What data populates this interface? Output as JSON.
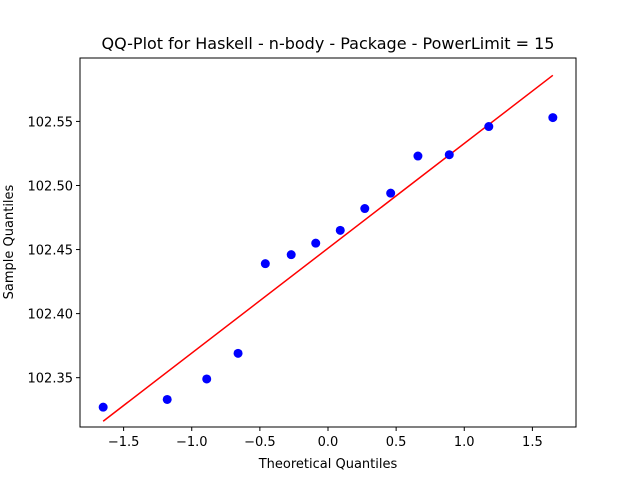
{
  "chart_data": {
    "type": "scatter",
    "title": "QQ-Plot for Haskell - n-body - Package - PowerLimit = 15",
    "xlabel": "Theoretical Quantiles",
    "ylabel": "Sample Quantiles",
    "xlim": [
      -1.82,
      1.82
    ],
    "ylim": [
      102.3115,
      102.5995
    ],
    "xticks": [
      -1.5,
      -1.0,
      -0.5,
      0.0,
      0.5,
      1.0,
      1.5
    ],
    "xtick_labels": [
      "−1.5",
      "−1.0",
      "−0.5",
      "0.0",
      "0.5",
      "1.0",
      "1.5"
    ],
    "yticks": [
      102.35,
      102.4,
      102.45,
      102.5,
      102.55
    ],
    "ytick_labels": [
      "102.35",
      "102.40",
      "102.45",
      "102.50",
      "102.55"
    ],
    "grid": false,
    "points": {
      "color": "#0000ff",
      "x": [
        -1.65,
        -1.18,
        -0.89,
        -0.66,
        -0.46,
        -0.27,
        -0.09,
        0.09,
        0.27,
        0.46,
        0.66,
        0.89,
        1.18,
        1.65
      ],
      "y": [
        102.327,
        102.333,
        102.349,
        102.369,
        102.439,
        102.446,
        102.455,
        102.465,
        102.482,
        102.494,
        102.523,
        102.524,
        102.546,
        102.553
      ]
    },
    "fit_line": {
      "color": "#ff0000",
      "x": [
        -1.65,
        1.65
      ],
      "y": [
        102.316,
        102.586
      ]
    }
  }
}
